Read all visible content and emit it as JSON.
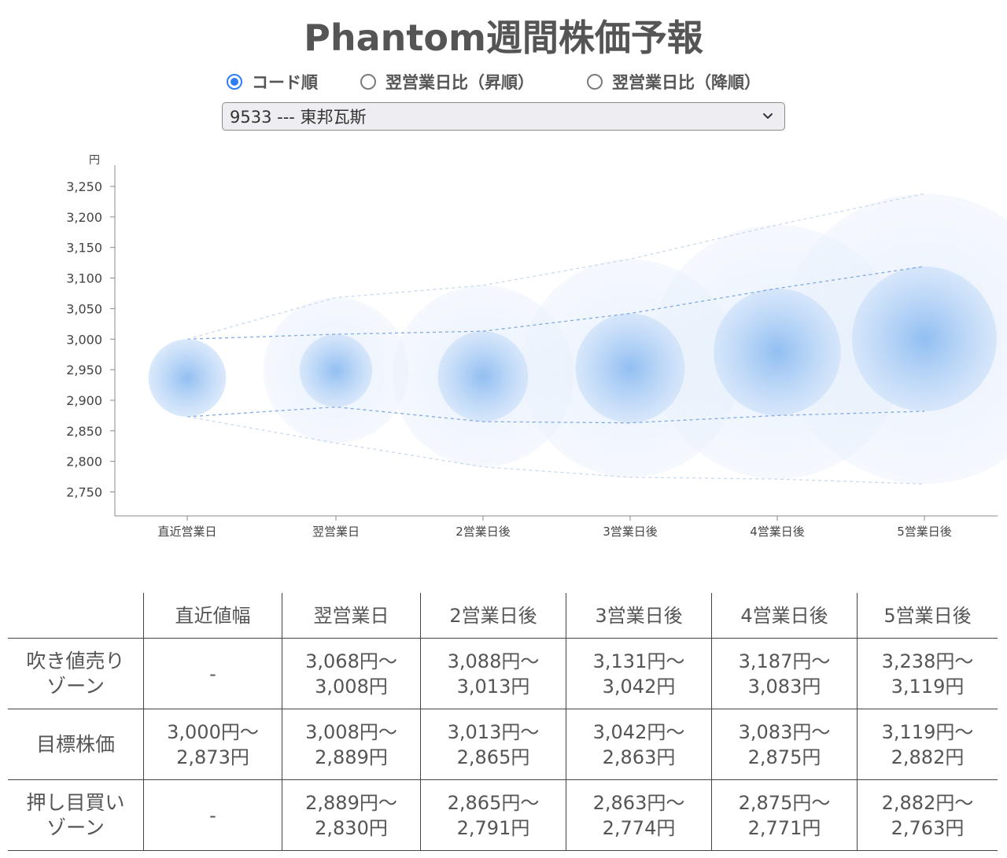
{
  "title": "Phantom週間株価予報",
  "sort_options": [
    {
      "label": "コード順",
      "checked": true
    },
    {
      "label": "翌営業日比（昇順）",
      "checked": false
    },
    {
      "label": "翌営業日比（降順）",
      "checked": false
    }
  ],
  "stock_select": {
    "value": "9533 --- 東邦瓦斯"
  },
  "chart_data": {
    "type": "scatter",
    "ylabel": "円",
    "yticks": [
      "3,250",
      "3,200",
      "3,150",
      "3,100",
      "3,050",
      "3,000",
      "2,950",
      "2,900",
      "2,850",
      "2,800",
      "2,750"
    ],
    "ylim": [
      2710,
      3280
    ],
    "categories": [
      "直近営業日",
      "翌営業日",
      "2営業日後",
      "3営業日後",
      "4営業日後",
      "5営業日後"
    ],
    "target_high": [
      3000,
      3008,
      3013,
      3042,
      3083,
      3119
    ],
    "target_low": [
      2873,
      2889,
      2865,
      2863,
      2875,
      2882
    ],
    "sell_zone_high": [
      3000,
      3068,
      3088,
      3131,
      3187,
      3238
    ],
    "buy_zone_low": [
      2873,
      2830,
      2791,
      2774,
      2771,
      2763
    ],
    "accent_color": "#5b9ae8"
  },
  "table": {
    "headers": [
      "",
      "直近値幅",
      "翌営業日",
      "2営業日後",
      "3営業日後",
      "4営業日後",
      "5営業日後"
    ],
    "rows": [
      {
        "label": [
          "吹き値売り",
          "ゾーン"
        ],
        "cells": [
          [
            "-"
          ],
          [
            "3,068円〜",
            "3,008円"
          ],
          [
            "3,088円〜",
            "3,013円"
          ],
          [
            "3,131円〜",
            "3,042円"
          ],
          [
            "3,187円〜",
            "3,083円"
          ],
          [
            "3,238円〜",
            "3,119円"
          ]
        ]
      },
      {
        "label": [
          "目標株価"
        ],
        "cells": [
          [
            "3,000円〜",
            "2,873円"
          ],
          [
            "3,008円〜",
            "2,889円"
          ],
          [
            "3,013円〜",
            "2,865円"
          ],
          [
            "3,042円〜",
            "2,863円"
          ],
          [
            "3,083円〜",
            "2,875円"
          ],
          [
            "3,119円〜",
            "2,882円"
          ]
        ]
      },
      {
        "label": [
          "押し目買い",
          "ゾーン"
        ],
        "cells": [
          [
            "-"
          ],
          [
            "2,889円〜",
            "2,830円"
          ],
          [
            "2,865円〜",
            "2,791円"
          ],
          [
            "2,863円〜",
            "2,774円"
          ],
          [
            "2,875円〜",
            "2,771円"
          ],
          [
            "2,882円〜",
            "2,763円"
          ]
        ]
      }
    ]
  }
}
